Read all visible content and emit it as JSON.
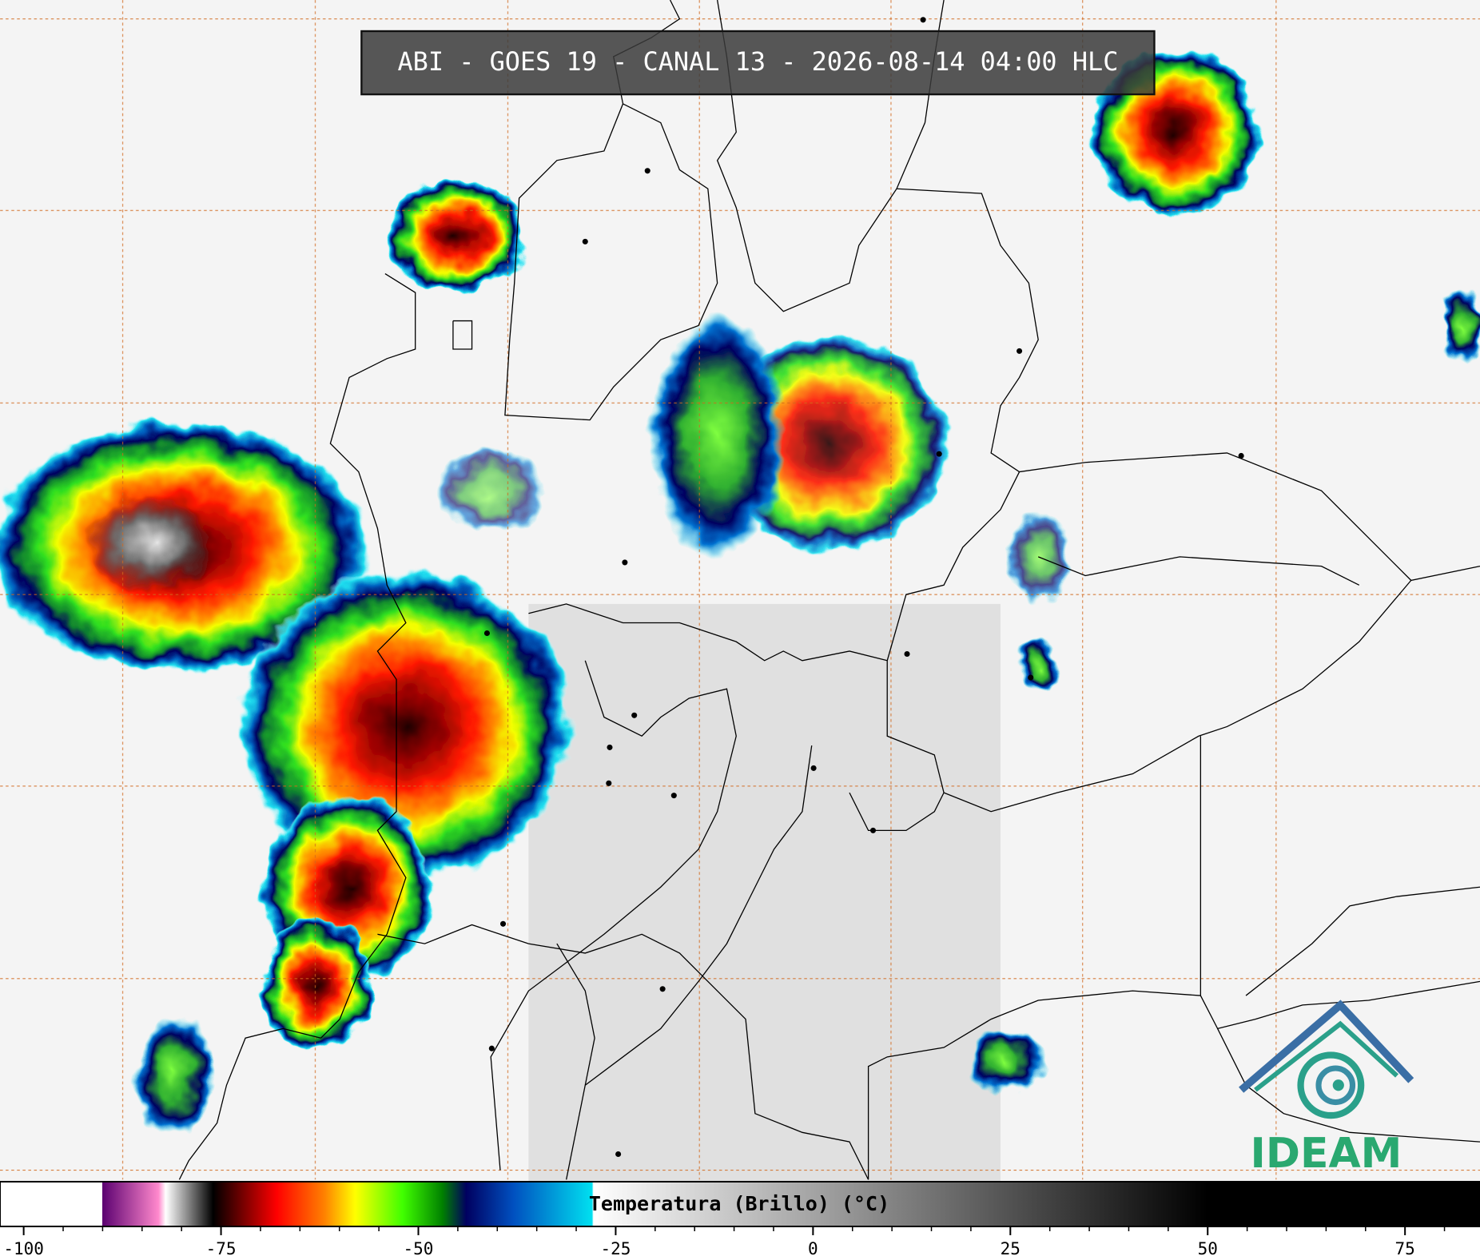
{
  "header": {
    "title": "ABI - GOES 19 - CANAL 13 - 2026-08-14 04:00 HLC"
  },
  "colorbar": {
    "label": "Temperatura (Brillo) (°C)",
    "range": [
      -103,
      84.5
    ],
    "ticks": [
      -100,
      -75,
      -50,
      -25,
      0,
      25,
      50,
      75
    ]
  },
  "logo": {
    "text": "IDEAM"
  }
}
